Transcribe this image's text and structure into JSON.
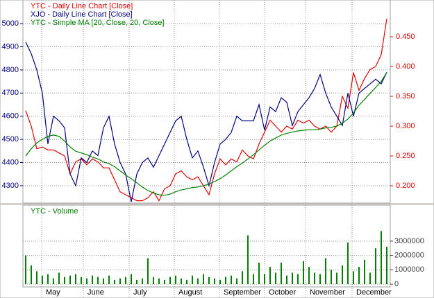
{
  "chart_data": [
    {
      "type": "line",
      "x": [
        0,
        1,
        2,
        3,
        4,
        5,
        6,
        7,
        8,
        9,
        10,
        11,
        12,
        13,
        14,
        15,
        16,
        17,
        18,
        19,
        20,
        21,
        22,
        23,
        24,
        25,
        26,
        27,
        28,
        29,
        30,
        31,
        32,
        33,
        34,
        35,
        36,
        37,
        38,
        39,
        40,
        41,
        42,
        43,
        44,
        45,
        46,
        47,
        48,
        49,
        50,
        51,
        52,
        53,
        54,
        55,
        56,
        57,
        58,
        59,
        60,
        61,
        62,
        63,
        64,
        65
      ],
      "xlim": [
        -0.5,
        65.625
      ],
      "xticks": [
        2.875,
        10.375,
        18.625,
        26.75,
        34.875,
        43,
        50.375,
        58.75
      ],
      "ylim": [
        4225,
        5102
      ],
      "yticks": [
        4300,
        4400,
        4500,
        4600,
        4700,
        4800,
        4900,
        5000
      ],
      "y2lim": [
        0.171,
        0.5116
      ],
      "y2ticks": [
        {
          "value": 0.2,
          "label": "0.200"
        },
        {
          "value": 0.25,
          "label": "0.250"
        },
        {
          "value": 0.3,
          "label": "0.300"
        },
        {
          "value": 0.35,
          "label": "0.350"
        },
        {
          "value": 0.4,
          "label": "0.400"
        },
        {
          "value": 0.45,
          "label": "0.450"
        }
      ],
      "grid": true,
      "series": [
        {
          "name": "YTC - Daily Line Chart [Close]",
          "color": "#e00000",
          "axis": "y2",
          "values": [
            0.326,
            0.3,
            0.262,
            0.265,
            0.26,
            0.26,
            0.255,
            0.25,
            0.22,
            0.24,
            0.245,
            0.235,
            0.245,
            0.24,
            0.23,
            0.23,
            0.21,
            0.19,
            0.185,
            0.18,
            0.175,
            0.175,
            0.18,
            0.19,
            0.175,
            0.195,
            0.2,
            0.22,
            0.225,
            0.215,
            0.21,
            0.215,
            0.2,
            0.185,
            0.22,
            0.245,
            0.235,
            0.245,
            0.24,
            0.26,
            0.25,
            0.245,
            0.27,
            0.29,
            0.31,
            0.3,
            0.29,
            0.3,
            0.295,
            0.31,
            0.305,
            0.31,
            0.3,
            0.295,
            0.3,
            0.29,
            0.3,
            0.35,
            0.33,
            0.39,
            0.36,
            0.38,
            0.395,
            0.4,
            0.42,
            0.48
          ]
        },
        {
          "name": "XJO - Daily Line Chart [Close]",
          "color": "#000080",
          "values": [
            4920,
            4870,
            4800,
            4700,
            4480,
            4600,
            4580,
            4550,
            4350,
            4300,
            4420,
            4400,
            4450,
            4430,
            4550,
            4600,
            4480,
            4400,
            4350,
            4230,
            4350,
            4400,
            4420,
            4380,
            4430,
            4480,
            4530,
            4580,
            4600,
            4500,
            4420,
            4450,
            4380,
            4300,
            4400,
            4480,
            4500,
            4530,
            4600,
            4580,
            4580,
            4580,
            4650,
            4540,
            4640,
            4620,
            4680,
            4660,
            4560,
            4620,
            4650,
            4680,
            4720,
            4780,
            4700,
            4640,
            4600,
            4560,
            4700,
            4600,
            4700,
            4720,
            4740,
            4760,
            4740,
            4790
          ]
        },
        {
          "name": "YTC - Simple MA [20, Close, 20, Close]",
          "color": "#008000",
          "axis": "y2",
          "values": [
            0.25,
            0.262,
            0.272,
            0.278,
            0.283,
            0.285,
            0.283,
            0.275,
            0.265,
            0.258,
            0.255,
            0.252,
            0.248,
            0.245,
            0.24,
            0.237,
            0.232,
            0.225,
            0.218,
            0.212,
            0.205,
            0.198,
            0.192,
            0.188,
            0.185,
            0.184,
            0.186,
            0.19,
            0.193,
            0.195,
            0.197,
            0.198,
            0.2,
            0.203,
            0.207,
            0.212,
            0.218,
            0.225,
            0.232,
            0.238,
            0.245,
            0.252,
            0.26,
            0.268,
            0.275,
            0.28,
            0.285,
            0.288,
            0.29,
            0.292,
            0.293,
            0.294,
            0.294,
            0.295,
            0.297,
            0.298,
            0.3,
            0.305,
            0.312,
            0.322,
            0.335,
            0.345,
            0.355,
            0.365,
            0.375,
            0.39
          ]
        }
      ]
    },
    {
      "type": "bar",
      "x": [
        0,
        1,
        2,
        3,
        4,
        5,
        6,
        7,
        8,
        9,
        10,
        11,
        12,
        13,
        14,
        15,
        16,
        17,
        18,
        19,
        20,
        21,
        22,
        23,
        24,
        25,
        26,
        27,
        28,
        29,
        30,
        31,
        32,
        33,
        34,
        35,
        36,
        37,
        38,
        39,
        40,
        41,
        42,
        43,
        44,
        45,
        46,
        47,
        48,
        49,
        50,
        51,
        52,
        53,
        54,
        55,
        56,
        57,
        58,
        59,
        60,
        61,
        62,
        63,
        64,
        65
      ],
      "xlim": [
        -0.5,
        65.625
      ],
      "xticks": [
        {
          "value": 2.875,
          "label": "May"
        },
        {
          "value": 10.375,
          "label": "June"
        },
        {
          "value": 18.625,
          "label": "July"
        },
        {
          "value": 26.75,
          "label": "August"
        },
        {
          "value": 34.875,
          "label": "September"
        },
        {
          "value": 43,
          "label": "October"
        },
        {
          "value": 50.375,
          "label": "November"
        },
        {
          "value": 58.75,
          "label": "December"
        }
      ],
      "ylim": [
        -190000,
        5500000
      ],
      "yticks": [
        0,
        1000000,
        2000000,
        3000000
      ],
      "grid": true,
      "series": [
        {
          "name": "YTC - Volume",
          "color": "#008000",
          "values": [
            2000000,
            1300000,
            900000,
            600000,
            700000,
            400000,
            800000,
            500000,
            600000,
            700000,
            500000,
            400000,
            600000,
            500000,
            400000,
            600000,
            300000,
            400000,
            500000,
            700000,
            300000,
            400000,
            1800000,
            500000,
            400000,
            300000,
            500000,
            600000,
            400000,
            300000,
            600000,
            400000,
            700000,
            500000,
            400000,
            300000,
            500000,
            600000,
            400000,
            900000,
            3400000,
            700000,
            1500000,
            700000,
            1200000,
            800000,
            1500000,
            600000,
            800000,
            700000,
            1600000,
            1200000,
            800000,
            700000,
            1800000,
            1000000,
            800000,
            1300000,
            2900000,
            900000,
            1200000,
            1700000,
            800000,
            2500000,
            3700000,
            2600000
          ]
        }
      ]
    }
  ]
}
